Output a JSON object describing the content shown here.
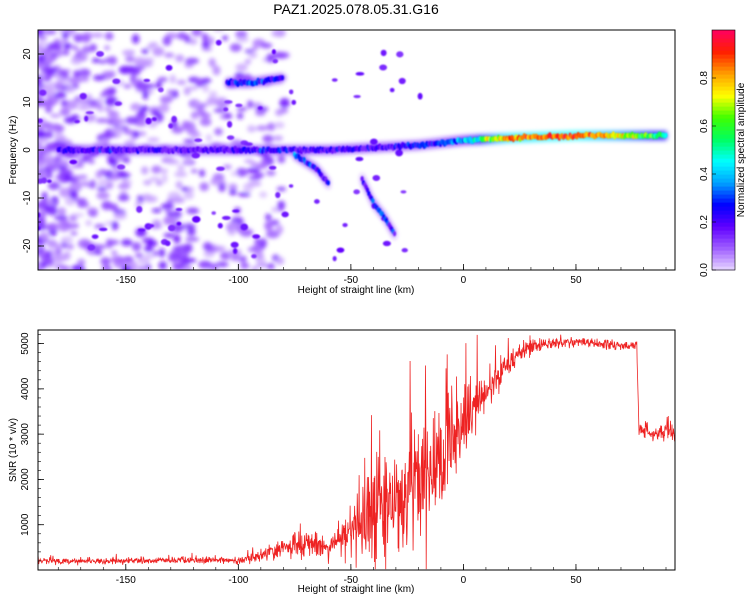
{
  "figure": {
    "title": "PAZ1.2025.078.05.31.G16"
  },
  "chart_data": [
    {
      "type": "heatmap",
      "xlabel": "Height of straight line (km)",
      "ylabel": "Frequency (Hz)",
      "xlim": [
        -189,
        94
      ],
      "ylim": [
        -25,
        25
      ],
      "xticks": [
        -150,
        -100,
        -50,
        0,
        50
      ],
      "yticks": [
        -20,
        -10,
        0,
        10,
        20
      ],
      "colorbar": {
        "label": "Normalized spectral amplitude",
        "range": [
          0,
          1
        ],
        "ticks": [
          "0.0",
          "0.2",
          "0.4",
          "0.6",
          "0.8"
        ],
        "colormap": [
          "#e8d8ff",
          "#a060ff",
          "#6000ff",
          "#0000ff",
          "#00a0ff",
          "#00ffff",
          "#00ff60",
          "#40ff00",
          "#ffff00",
          "#ffa000",
          "#ff2000",
          "#ff0060"
        ]
      },
      "features": [
        {
          "segment": "main_signal",
          "x": [
            -180,
            -120,
            -90,
            -60,
            -40,
            -20,
            0,
            20,
            50,
            90
          ],
          "frequency": [
            0,
            0,
            0,
            0,
            0.5,
            1,
            2,
            2.5,
            3,
            3
          ],
          "amplitude": [
            0.2,
            0.15,
            0.25,
            0.2,
            0.2,
            0.25,
            0.35,
            0.85,
            0.9,
            0.5
          ]
        },
        {
          "segment": "upper_branch",
          "x": [
            -105,
            -95,
            -80
          ],
          "frequency": [
            14,
            14,
            15
          ],
          "amplitude": [
            0.25,
            0.3,
            0.2
          ]
        },
        {
          "segment": "descending_branch",
          "x": [
            -75,
            -65,
            -60
          ],
          "frequency": [
            -1,
            -4,
            -7
          ],
          "amplitude": [
            0.3,
            0.25,
            0.2
          ]
        },
        {
          "segment": "diagonal_branch",
          "x": [
            -45,
            -40,
            -35,
            -30
          ],
          "frequency": [
            -6,
            -11,
            -14,
            -18
          ],
          "amplitude": [
            0.25,
            0.25,
            0.3,
            0.15
          ]
        }
      ]
    },
    {
      "type": "line",
      "xlabel": "Height of straight line (km)",
      "ylabel": "SNR (10 * v/v)",
      "xlim": [
        -189,
        94
      ],
      "ylim": [
        0,
        5300
      ],
      "xticks": [
        -150,
        -100,
        -50,
        0,
        50
      ],
      "yticks": [
        1000,
        2000,
        3000,
        4000,
        5000
      ],
      "color": "#ee2222",
      "envelope": {
        "x": [
          -189,
          -150,
          -100,
          -90,
          -80,
          -70,
          -60,
          -50,
          -40,
          -30,
          -20,
          -10,
          0,
          10,
          20,
          30,
          50,
          70,
          77,
          78,
          85,
          94
        ],
        "mean": [
          200,
          200,
          220,
          300,
          500,
          600,
          450,
          900,
          1300,
          1600,
          1900,
          2600,
          3200,
          3900,
          4600,
          4950,
          5050,
          4950,
          4950,
          3100,
          3050,
          3050
        ],
        "spread": [
          60,
          70,
          80,
          120,
          250,
          300,
          200,
          700,
          1200,
          1500,
          1600,
          1200,
          800,
          500,
          300,
          150,
          100,
          100,
          100,
          150,
          200,
          350
        ]
      }
    }
  ]
}
